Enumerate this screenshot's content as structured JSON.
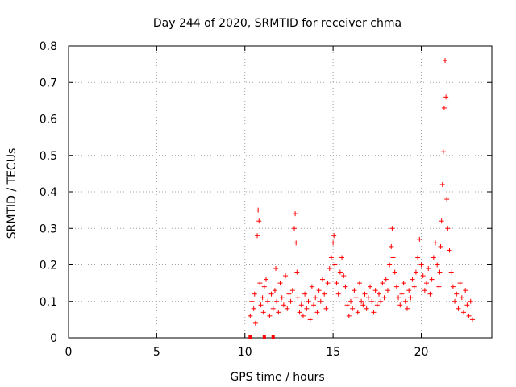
{
  "chart_data": {
    "type": "scatter",
    "title": "Day 244 of 2020, SRMTID for receiver chma",
    "xlabel": "GPS time / hours",
    "ylabel": "SRMTID / TECUs",
    "xlim": [
      0,
      24
    ],
    "ylim": [
      0,
      0.8
    ],
    "xticks": [
      0,
      5,
      10,
      15,
      20
    ],
    "yticks": [
      0,
      0.1,
      0.2,
      0.3,
      0.4,
      0.5,
      0.6,
      0.7,
      0.8
    ],
    "grid": true,
    "marker": "+",
    "color": "#ff0000",
    "series": [
      {
        "name": "SRMTID",
        "x": [
          10.3,
          10.4,
          10.5,
          10.55,
          10.6,
          10.7,
          10.75,
          10.8,
          10.85,
          10.9,
          11.0,
          11.05,
          11.1,
          11.2,
          11.3,
          11.4,
          11.5,
          11.6,
          11.7,
          11.75,
          11.8,
          11.9,
          12.0,
          12.1,
          12.2,
          12.3,
          12.4,
          12.5,
          12.6,
          12.7,
          12.8,
          12.85,
          12.9,
          12.95,
          13.0,
          13.1,
          13.2,
          13.3,
          13.4,
          13.5,
          13.6,
          13.7,
          13.8,
          13.9,
          14.0,
          14.1,
          14.2,
          14.3,
          14.4,
          14.5,
          14.6,
          14.7,
          14.8,
          14.9,
          15.0,
          15.05,
          15.1,
          15.2,
          15.3,
          15.4,
          15.5,
          15.6,
          15.7,
          15.8,
          15.9,
          16.0,
          16.1,
          16.2,
          16.3,
          16.4,
          16.5,
          16.6,
          16.7,
          16.8,
          16.9,
          17.0,
          17.1,
          17.2,
          17.3,
          17.4,
          17.5,
          17.6,
          17.7,
          17.8,
          17.9,
          18.0,
          18.1,
          18.2,
          18.3,
          18.35,
          18.4,
          18.5,
          18.6,
          18.7,
          18.8,
          18.9,
          19.0,
          19.1,
          19.2,
          19.3,
          19.4,
          19.5,
          19.6,
          19.7,
          19.8,
          19.9,
          20.0,
          20.1,
          20.2,
          20.3,
          20.4,
          20.5,
          20.6,
          20.7,
          20.8,
          20.9,
          21.0,
          21.05,
          21.1,
          21.15,
          21.2,
          21.25,
          21.3,
          21.35,
          21.4,
          21.45,
          21.5,
          21.6,
          21.7,
          21.8,
          21.9,
          22.0,
          22.1,
          22.2,
          22.3,
          22.4,
          22.5,
          22.6,
          22.7,
          22.8,
          22.9
        ],
        "y": [
          0.06,
          0.1,
          0.08,
          0.12,
          0.04,
          0.28,
          0.35,
          0.32,
          0.15,
          0.09,
          0.11,
          0.07,
          0.14,
          0.16,
          0.1,
          0.06,
          0.12,
          0.08,
          0.13,
          0.19,
          0.1,
          0.07,
          0.15,
          0.11,
          0.09,
          0.17,
          0.08,
          0.12,
          0.1,
          0.13,
          0.3,
          0.34,
          0.26,
          0.18,
          0.11,
          0.07,
          0.09,
          0.06,
          0.12,
          0.08,
          0.1,
          0.05,
          0.14,
          0.09,
          0.11,
          0.07,
          0.13,
          0.1,
          0.16,
          0.12,
          0.08,
          0.15,
          0.19,
          0.22,
          0.26,
          0.28,
          0.2,
          0.15,
          0.12,
          0.18,
          0.22,
          0.17,
          0.14,
          0.09,
          0.06,
          0.1,
          0.08,
          0.13,
          0.11,
          0.07,
          0.15,
          0.1,
          0.09,
          0.12,
          0.08,
          0.11,
          0.14,
          0.1,
          0.07,
          0.13,
          0.09,
          0.12,
          0.1,
          0.15,
          0.11,
          0.16,
          0.13,
          0.2,
          0.25,
          0.3,
          0.22,
          0.18,
          0.14,
          0.11,
          0.09,
          0.12,
          0.15,
          0.1,
          0.08,
          0.13,
          0.11,
          0.16,
          0.14,
          0.18,
          0.22,
          0.27,
          0.2,
          0.17,
          0.13,
          0.15,
          0.19,
          0.12,
          0.16,
          0.22,
          0.26,
          0.2,
          0.14,
          0.18,
          0.25,
          0.32,
          0.42,
          0.51,
          0.63,
          0.76,
          0.66,
          0.38,
          0.3,
          0.24,
          0.18,
          0.14,
          0.1,
          0.12,
          0.08,
          0.15,
          0.11,
          0.07,
          0.13,
          0.09,
          0.06,
          0.1,
          0.05
        ]
      }
    ],
    "axis_marks": [
      10.3,
      11.1,
      11.6
    ]
  }
}
